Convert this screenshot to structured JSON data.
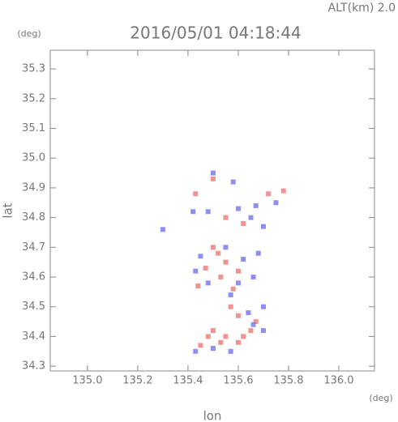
{
  "chart_data": {
    "type": "scatter",
    "title": "2016/05/01 04:18:44",
    "annotation": "ALT(km) 2.0",
    "x_label": "lon",
    "y_label": "lat",
    "x_unit": "(deg)",
    "y_unit": "(deg)",
    "xlim": [
      134.852,
      136.142
    ],
    "ylim": [
      34.284,
      35.363
    ],
    "xticks": [
      {
        "value": 135,
        "label": "135.0"
      },
      135.2,
      135.4,
      135.6,
      135.8,
      {
        "value": 136,
        "label": "136.0"
      }
    ],
    "yticks": [
      34.3,
      34.4,
      34.5,
      34.6,
      34.7,
      34.8,
      34.9,
      {
        "value": 35,
        "label": "35.0"
      },
      35.1,
      35.2,
      35.3
    ],
    "series": [
      {
        "color": "#f08080",
        "x": [
          135.43,
          135.5,
          135.55,
          135.62,
          135.72,
          135.78,
          135.5,
          135.52,
          135.47,
          135.55,
          135.6,
          135.58,
          135.53,
          135.44,
          135.57,
          135.6,
          135.67,
          135.65,
          135.5,
          135.48,
          135.55,
          135.6,
          135.45,
          135.53,
          135.62
        ],
        "values": [
          34.88,
          34.93,
          34.8,
          34.78,
          34.88,
          34.89,
          34.7,
          34.68,
          34.63,
          34.65,
          34.62,
          34.56,
          34.6,
          34.57,
          34.5,
          34.47,
          34.45,
          34.42,
          34.42,
          34.4,
          34.4,
          34.38,
          34.37,
          34.38,
          34.4
        ]
      },
      {
        "color": "#7b7bf0",
        "x": [
          135.3,
          135.5,
          135.58,
          135.67,
          135.75,
          135.48,
          135.6,
          135.65,
          135.7,
          135.45,
          135.43,
          135.48,
          135.6,
          135.62,
          135.55,
          135.66,
          135.68,
          135.57,
          135.7,
          135.64,
          135.7,
          135.43,
          135.5,
          135.57,
          135.66,
          135.42
        ],
        "values": [
          34.76,
          34.95,
          34.92,
          34.84,
          34.85,
          34.82,
          34.83,
          34.8,
          34.77,
          34.67,
          34.62,
          34.58,
          34.58,
          34.66,
          34.7,
          34.6,
          34.68,
          34.54,
          34.5,
          34.48,
          34.42,
          34.35,
          34.36,
          34.35,
          34.44,
          34.82
        ]
      }
    ]
  }
}
